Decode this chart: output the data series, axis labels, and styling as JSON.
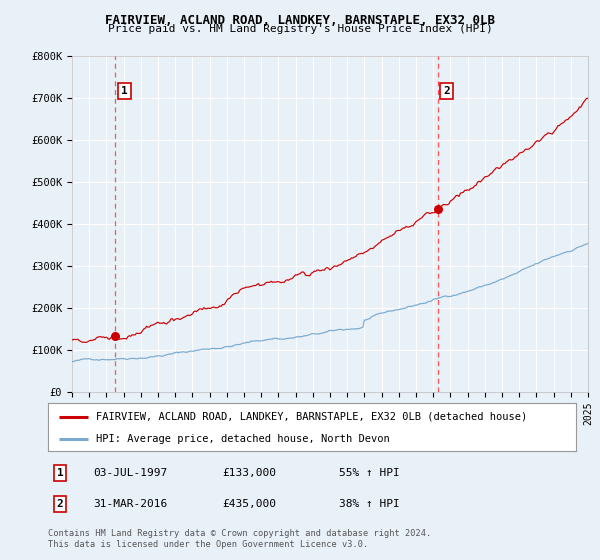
{
  "title": "FAIRVIEW, ACLAND ROAD, LANDKEY, BARNSTAPLE, EX32 0LB",
  "subtitle": "Price paid vs. HM Land Registry's House Price Index (HPI)",
  "bg_color": "#e8f0f8",
  "plot_bg_color": "#e8f0f8",
  "grid_color": "#ffffff",
  "red_line_color": "#cc0000",
  "blue_line_color": "#7aaad0",
  "dashed_line_color": "#ff5555",
  "ylim": [
    0,
    800000
  ],
  "yticks": [
    0,
    100000,
    200000,
    300000,
    400000,
    500000,
    600000,
    700000,
    800000
  ],
  "ytick_labels": [
    "£0",
    "£100K",
    "£200K",
    "£300K",
    "£400K",
    "£500K",
    "£600K",
    "£700K",
    "£800K"
  ],
  "x_start_year": 1995,
  "x_end_year": 2025,
  "sale1_date": 1997.5,
  "sale1_price": 133000,
  "sale2_date": 2016.25,
  "sale2_price": 435000,
  "legend_line1": "FAIRVIEW, ACLAND ROAD, LANDKEY, BARNSTAPLE, EX32 0LB (detached house)",
  "legend_line2": "HPI: Average price, detached house, North Devon",
  "annotation1_label": "1",
  "annotation1_date": "03-JUL-1997",
  "annotation1_price": "£133,000",
  "annotation1_hpi": "55% ↑ HPI",
  "annotation2_label": "2",
  "annotation2_date": "31-MAR-2016",
  "annotation2_price": "£435,000",
  "annotation2_hpi": "38% ↑ HPI",
  "footer": "Contains HM Land Registry data © Crown copyright and database right 2024.\nThis data is licensed under the Open Government Licence v3.0."
}
